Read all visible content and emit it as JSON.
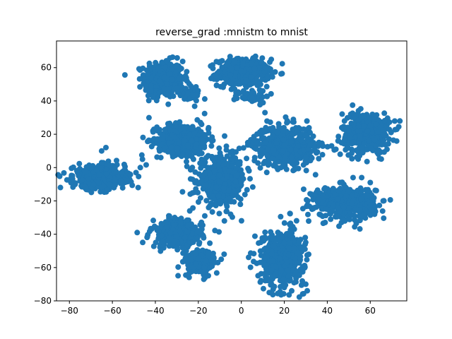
{
  "chart_data": {
    "type": "scatter",
    "title": "reverse_grad :mnistm to mnist",
    "xlabel": "",
    "ylabel": "",
    "xlim": [
      -86,
      77
    ],
    "ylim": [
      -80,
      76
    ],
    "x_ticks": [
      -80,
      -60,
      -40,
      -20,
      0,
      20,
      40,
      60
    ],
    "y_ticks": [
      -80,
      -60,
      -40,
      -20,
      0,
      20,
      40,
      60
    ],
    "grid": false,
    "legend": "none",
    "marker": "circle",
    "color": "#1f77b4",
    "clusters": [
      {
        "center": [
          -36,
          53
        ],
        "spread": [
          4.5,
          5.5
        ],
        "count": 380
      },
      {
        "center": [
          -24,
          44
        ],
        "spread": [
          2.5,
          2.5
        ],
        "count": 40
      },
      {
        "center": [
          1,
          57
        ],
        "spread": [
          6,
          4
        ],
        "count": 420
      },
      {
        "center": [
          5,
          43
        ],
        "spread": [
          4,
          2
        ],
        "count": 50
      },
      {
        "center": [
          -27,
          17
        ],
        "spread": [
          6,
          4.5
        ],
        "count": 430
      },
      {
        "center": [
          20,
          13
        ],
        "spread": [
          7,
          6
        ],
        "count": 540
      },
      {
        "center": [
          58,
          21
        ],
        "spread": [
          5.5,
          6
        ],
        "count": 430
      },
      {
        "center": [
          -66,
          -6
        ],
        "spread": [
          6,
          3.5
        ],
        "count": 480
      },
      {
        "center": [
          -9,
          -8
        ],
        "spread": [
          5.5,
          7
        ],
        "count": 480
      },
      {
        "center": [
          48,
          -21
        ],
        "spread": [
          7,
          4.5
        ],
        "count": 480
      },
      {
        "center": [
          -30,
          -40
        ],
        "spread": [
          6,
          4
        ],
        "count": 310
      },
      {
        "center": [
          -19,
          -57
        ],
        "spread": [
          4,
          4
        ],
        "count": 170
      },
      {
        "center": [
          19,
          -54
        ],
        "spread": [
          5,
          8
        ],
        "count": 520
      }
    ],
    "outliers": [
      [
        -46,
        5
      ],
      [
        -47,
        0
      ],
      [
        -49,
        -3
      ],
      [
        -48,
        -12
      ],
      [
        -63,
        12
      ],
      [
        -65,
        10
      ],
      [
        -10,
        6
      ],
      [
        -5,
        -28
      ],
      [
        -19,
        27
      ],
      [
        -8,
        -52
      ],
      [
        -24,
        -26
      ],
      [
        -17,
        -29
      ],
      [
        -31,
        -30
      ],
      [
        -10,
        63
      ],
      [
        -8,
        50
      ],
      [
        10,
        46
      ],
      [
        -42,
        46
      ],
      [
        -34,
        38
      ],
      [
        -26,
        55
      ],
      [
        3,
        15
      ],
      [
        11,
        33
      ],
      [
        32,
        14
      ],
      [
        38,
        13
      ],
      [
        42,
        13
      ],
      [
        44,
        11
      ],
      [
        52,
        -6
      ],
      [
        56,
        -6
      ],
      [
        60,
        -9
      ],
      [
        66,
        -20
      ],
      [
        62,
        -28
      ],
      [
        29,
        -13
      ],
      [
        20,
        -72
      ],
      [
        13,
        -75
      ],
      [
        30,
        -70
      ],
      [
        45,
        16
      ],
      [
        46,
        8
      ],
      [
        -37,
        -34
      ]
    ]
  }
}
